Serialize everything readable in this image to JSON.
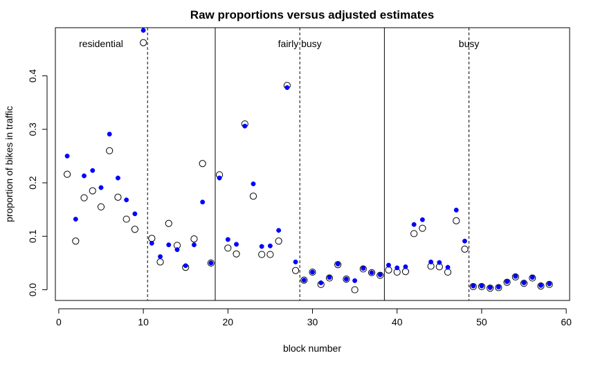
{
  "chart_data": {
    "type": "scatter",
    "title": "Raw proportions versus adjusted estimates",
    "xlabel": "block number",
    "ylabel": "proportion of bikes in traffic",
    "xlim": [
      -0.4,
      60.4
    ],
    "ylim": [
      -0.02,
      0.49
    ],
    "x_ticks": [
      "0",
      "10",
      "20",
      "30",
      "40",
      "50",
      "60"
    ],
    "y_ticks": [
      "0.0",
      "0.1",
      "0.2",
      "0.3",
      "0.4"
    ],
    "grid": false,
    "legend": "none",
    "regions": [
      {
        "label": "residential",
        "label_x": 5
      },
      {
        "label": "fairly busy",
        "label_x": 28.5
      },
      {
        "label": "busy",
        "label_x": 48.5
      }
    ],
    "solid_lines": [
      18.5,
      38.5
    ],
    "dashed_lines": [
      10.5,
      28.5,
      48.5
    ],
    "series": [
      {
        "marker": "open-circle",
        "color": "#000000",
        "points": [
          [
            1,
            0.216
          ],
          [
            2,
            0.091
          ],
          [
            3,
            0.172
          ],
          [
            4,
            0.185
          ],
          [
            5,
            0.155
          ],
          [
            6,
            0.26
          ],
          [
            7,
            0.173
          ],
          [
            8,
            0.132
          ],
          [
            9,
            0.113
          ],
          [
            10,
            0.462
          ],
          [
            11,
            0.096
          ],
          [
            12,
            0.052
          ],
          [
            13,
            0.124
          ],
          [
            14,
            0.083
          ],
          [
            15,
            0.042
          ],
          [
            16,
            0.095
          ],
          [
            17,
            0.236
          ],
          [
            18,
            0.05
          ],
          [
            19,
            0.215
          ],
          [
            20,
            0.078
          ],
          [
            21,
            0.067
          ],
          [
            22,
            0.31
          ],
          [
            23,
            0.175
          ],
          [
            24,
            0.066
          ],
          [
            25,
            0.066
          ],
          [
            26,
            0.091
          ],
          [
            27,
            0.382
          ],
          [
            28,
            0.036
          ],
          [
            29,
            0.018
          ],
          [
            30,
            0.033
          ],
          [
            31,
            0.01
          ],
          [
            32,
            0.022
          ],
          [
            33,
            0.047
          ],
          [
            34,
            0.02
          ],
          [
            35,
            0.0
          ],
          [
            36,
            0.039
          ],
          [
            37,
            0.032
          ],
          [
            38,
            0.027
          ],
          [
            39,
            0.037
          ],
          [
            40,
            0.033
          ],
          [
            41,
            0.034
          ],
          [
            42,
            0.105
          ],
          [
            43,
            0.115
          ],
          [
            44,
            0.044
          ],
          [
            45,
            0.043
          ],
          [
            46,
            0.033
          ],
          [
            47,
            0.129
          ],
          [
            48,
            0.076
          ],
          [
            49,
            0.006
          ],
          [
            50,
            0.006
          ],
          [
            51,
            0.003
          ],
          [
            52,
            0.004
          ],
          [
            53,
            0.014
          ],
          [
            54,
            0.024
          ],
          [
            55,
            0.012
          ],
          [
            56,
            0.022
          ],
          [
            57,
            0.007
          ],
          [
            58,
            0.01
          ]
        ]
      },
      {
        "marker": "filled-circle",
        "color": "#0000ff",
        "points": [
          [
            1,
            0.25
          ],
          [
            2,
            0.132
          ],
          [
            3,
            0.213
          ],
          [
            4,
            0.223
          ],
          [
            5,
            0.191
          ],
          [
            6,
            0.291
          ],
          [
            7,
            0.209
          ],
          [
            8,
            0.168
          ],
          [
            9,
            0.142
          ],
          [
            10,
            0.485
          ],
          [
            11,
            0.087
          ],
          [
            12,
            0.062
          ],
          [
            13,
            0.084
          ],
          [
            14,
            0.075
          ],
          [
            15,
            0.045
          ],
          [
            16,
            0.084
          ],
          [
            17,
            0.164
          ],
          [
            18,
            0.05
          ],
          [
            19,
            0.209
          ],
          [
            20,
            0.094
          ],
          [
            21,
            0.085
          ],
          [
            22,
            0.306
          ],
          [
            23,
            0.198
          ],
          [
            24,
            0.081
          ],
          [
            25,
            0.082
          ],
          [
            26,
            0.111
          ],
          [
            27,
            0.378
          ],
          [
            28,
            0.052
          ],
          [
            29,
            0.018
          ],
          [
            30,
            0.033
          ],
          [
            31,
            0.013
          ],
          [
            32,
            0.023
          ],
          [
            33,
            0.048
          ],
          [
            34,
            0.02
          ],
          [
            35,
            0.017
          ],
          [
            36,
            0.04
          ],
          [
            37,
            0.032
          ],
          [
            38,
            0.028
          ],
          [
            39,
            0.046
          ],
          [
            40,
            0.041
          ],
          [
            41,
            0.043
          ],
          [
            42,
            0.122
          ],
          [
            43,
            0.131
          ],
          [
            44,
            0.052
          ],
          [
            45,
            0.051
          ],
          [
            46,
            0.042
          ],
          [
            47,
            0.149
          ],
          [
            48,
            0.091
          ],
          [
            49,
            0.007
          ],
          [
            50,
            0.007
          ],
          [
            51,
            0.004
          ],
          [
            52,
            0.005
          ],
          [
            53,
            0.015
          ],
          [
            54,
            0.025
          ],
          [
            55,
            0.013
          ],
          [
            56,
            0.023
          ],
          [
            57,
            0.008
          ],
          [
            58,
            0.011
          ]
        ]
      }
    ]
  }
}
